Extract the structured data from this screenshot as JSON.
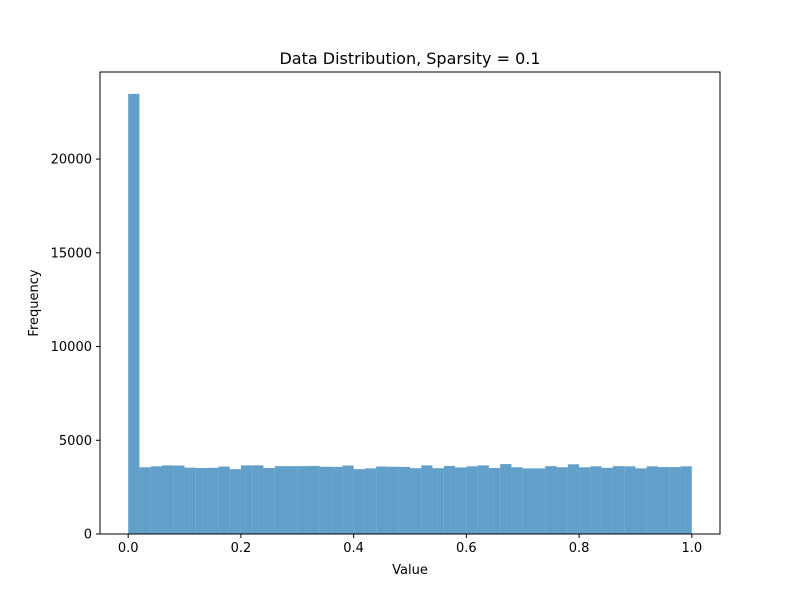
{
  "chart_data": {
    "type": "bar",
    "title": "Data Distribution, Sparsity = 0.1",
    "xlabel": "Value",
    "ylabel": "Frequency",
    "xlim": [
      -0.05,
      1.05
    ],
    "ylim": [
      0,
      24645
    ],
    "xticks": [
      0.0,
      0.2,
      0.4,
      0.6,
      0.8,
      1.0
    ],
    "xtick_labels": [
      "0.0",
      "0.2",
      "0.4",
      "0.6",
      "0.8",
      "1.0"
    ],
    "yticks": [
      0,
      5000,
      10000,
      15000,
      20000
    ],
    "ytick_labels": [
      "0",
      "5000",
      "10000",
      "15000",
      "20000"
    ],
    "grid": false,
    "legend": "none",
    "bar_color": "#1f77b4",
    "bar_alpha": 0.7,
    "bin_edges": [
      0.0,
      0.02,
      0.04,
      0.06,
      0.08,
      0.1,
      0.12,
      0.14,
      0.16,
      0.18,
      0.2,
      0.22,
      0.24,
      0.26,
      0.28,
      0.3,
      0.32,
      0.34,
      0.36,
      0.38,
      0.4,
      0.42,
      0.44,
      0.46,
      0.48,
      0.5,
      0.52,
      0.54,
      0.56,
      0.58,
      0.6,
      0.62,
      0.64,
      0.66,
      0.68,
      0.7,
      0.72,
      0.74,
      0.76,
      0.78,
      0.8,
      0.82,
      0.84,
      0.86,
      0.88,
      0.9,
      0.92,
      0.94,
      0.96,
      0.98,
      1.0
    ],
    "values": [
      23480,
      3560,
      3610,
      3660,
      3650,
      3540,
      3520,
      3530,
      3600,
      3460,
      3660,
      3660,
      3520,
      3620,
      3620,
      3620,
      3630,
      3590,
      3580,
      3650,
      3460,
      3500,
      3600,
      3590,
      3580,
      3510,
      3660,
      3510,
      3630,
      3550,
      3610,
      3660,
      3520,
      3730,
      3560,
      3500,
      3500,
      3620,
      3560,
      3720,
      3560,
      3610,
      3530,
      3620,
      3610,
      3500,
      3610,
      3570,
      3570,
      3610
    ]
  }
}
